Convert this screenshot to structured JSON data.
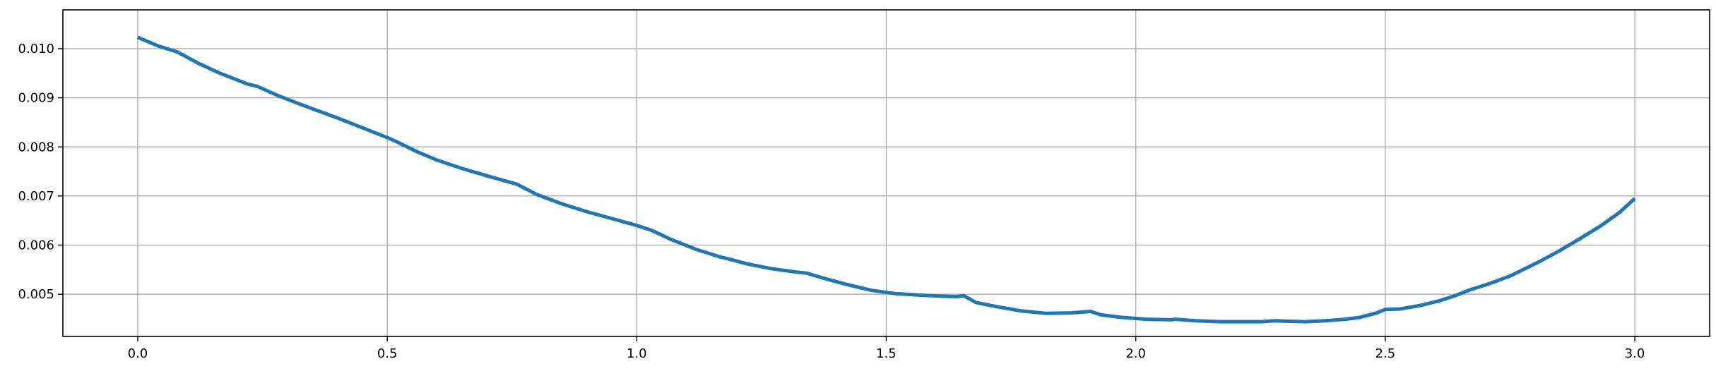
{
  "chart_data": {
    "type": "line",
    "title": "",
    "xlabel": "",
    "ylabel": "",
    "xlim": [
      -0.15,
      3.15
    ],
    "ylim": [
      0.00414,
      0.01079
    ],
    "grid": true,
    "legend": "none",
    "line_color": "#1f77b4",
    "grid_color": "#b0b0b0",
    "x_ticks": [
      0.0,
      0.5,
      1.0,
      1.5,
      2.0,
      2.5,
      3.0
    ],
    "x_tick_labels": [
      "0.0",
      "0.5",
      "1.0",
      "1.5",
      "2.0",
      "2.5",
      "3.0"
    ],
    "y_ticks": [
      0.005,
      0.006,
      0.007,
      0.008,
      0.009,
      0.01
    ],
    "y_tick_labels": [
      "0.005",
      "0.006",
      "0.007",
      "0.008",
      "0.009",
      "0.010"
    ],
    "series": [
      {
        "x": [
          0.0,
          0.04,
          0.08,
          0.12,
          0.16,
          0.2,
          0.22,
          0.24,
          0.28,
          0.32,
          0.36,
          0.4,
          0.45,
          0.5,
          0.52,
          0.56,
          0.6,
          0.65,
          0.7,
          0.76,
          0.8,
          0.85,
          0.9,
          0.95,
          1.0,
          1.03,
          1.07,
          1.12,
          1.17,
          1.18,
          1.22,
          1.27,
          1.32,
          1.34,
          1.38,
          1.42,
          1.47,
          1.52,
          1.57,
          1.61,
          1.64,
          1.655,
          1.68,
          1.72,
          1.77,
          1.82,
          1.87,
          1.91,
          1.93,
          1.97,
          2.02,
          2.07,
          2.08,
          2.12,
          2.17,
          2.22,
          2.25,
          2.28,
          2.3,
          2.34,
          2.38,
          2.42,
          2.45,
          2.48,
          2.5,
          2.53,
          2.57,
          2.61,
          2.64,
          2.67,
          2.71,
          2.75,
          2.78,
          2.81,
          2.85,
          2.89,
          2.93,
          2.97,
          3.0
        ],
        "y": [
          0.01023,
          0.01006,
          0.00993,
          0.00971,
          0.00952,
          0.00936,
          0.00928,
          0.00923,
          0.00905,
          0.00889,
          0.00874,
          0.00859,
          0.00839,
          0.00819,
          0.0081,
          0.0079,
          0.00773,
          0.00756,
          0.00741,
          0.00724,
          0.00703,
          0.00684,
          0.00668,
          0.00654,
          0.0064,
          0.0063,
          0.00611,
          0.00591,
          0.00575,
          0.00573,
          0.00562,
          0.00552,
          0.00545,
          0.00543,
          0.00531,
          0.0052,
          0.00508,
          0.00501,
          0.00498,
          0.00496,
          0.00495,
          0.00497,
          0.00483,
          0.00475,
          0.00466,
          0.00461,
          0.00462,
          0.00465,
          0.00458,
          0.00453,
          0.00449,
          0.00448,
          0.00449,
          0.00446,
          0.00444,
          0.00444,
          0.00444,
          0.00446,
          0.00445,
          0.00444,
          0.00446,
          0.00449,
          0.00453,
          0.00461,
          0.00469,
          0.0047,
          0.00477,
          0.00487,
          0.00497,
          0.00509,
          0.00522,
          0.00537,
          0.00552,
          0.00567,
          0.00589,
          0.00613,
          0.00638,
          0.00667,
          0.00695
        ]
      }
    ]
  }
}
